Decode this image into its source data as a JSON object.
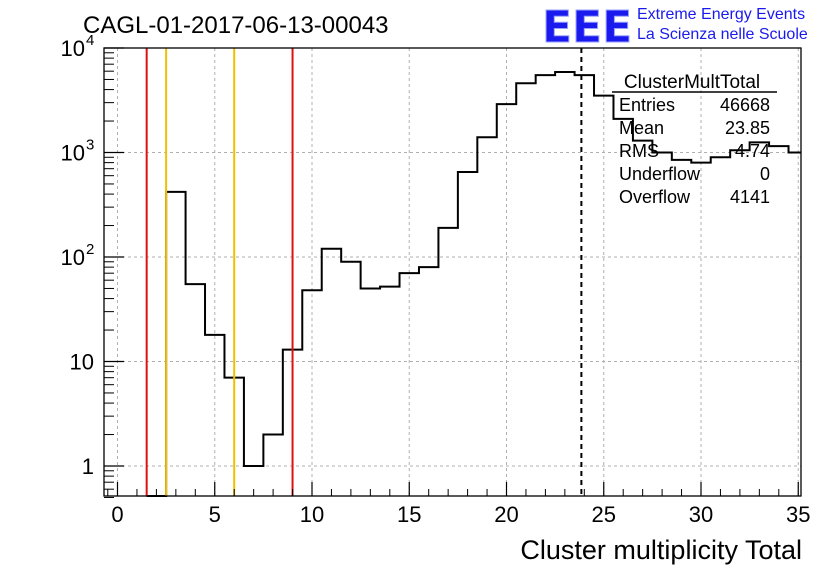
{
  "chart_data": {
    "type": "histogram",
    "title": "CAGL-01-2017-06-13-00043",
    "xlabel": "Cluster multiplicity Total",
    "ylabel": "",
    "xlim": [
      -0.5,
      35
    ],
    "ylim": [
      0.5,
      10000
    ],
    "y_scale": "log",
    "grid": true,
    "bin_width": 1,
    "bins": [
      {
        "x": 2,
        "y": 0
      },
      {
        "x": 3,
        "y": 420
      },
      {
        "x": 4,
        "y": 55
      },
      {
        "x": 5,
        "y": 18
      },
      {
        "x": 6,
        "y": 7
      },
      {
        "x": 7,
        "y": 1
      },
      {
        "x": 8,
        "y": 2
      },
      {
        "x": 9,
        "y": 13
      },
      {
        "x": 10,
        "y": 48
      },
      {
        "x": 11,
        "y": 120
      },
      {
        "x": 12,
        "y": 90
      },
      {
        "x": 13,
        "y": 50
      },
      {
        "x": 14,
        "y": 52
      },
      {
        "x": 15,
        "y": 70
      },
      {
        "x": 16,
        "y": 80
      },
      {
        "x": 17,
        "y": 190
      },
      {
        "x": 18,
        "y": 650
      },
      {
        "x": 19,
        "y": 1400
      },
      {
        "x": 20,
        "y": 2900
      },
      {
        "x": 21,
        "y": 4600
      },
      {
        "x": 22,
        "y": 5500
      },
      {
        "x": 23,
        "y": 5900
      },
      {
        "x": 24,
        "y": 5500
      },
      {
        "x": 25,
        "y": 3500
      },
      {
        "x": 26,
        "y": 2100
      },
      {
        "x": 27,
        "y": 1300
      },
      {
        "x": 28,
        "y": 1000
      },
      {
        "x": 29,
        "y": 850
      },
      {
        "x": 30,
        "y": 800
      },
      {
        "x": 31,
        "y": 900
      },
      {
        "x": 32,
        "y": 1050
      },
      {
        "x": 33,
        "y": 1250
      },
      {
        "x": 34,
        "y": 1150
      },
      {
        "x": 35,
        "y": 1000
      }
    ],
    "vertical_lines": [
      {
        "x": 1.5,
        "color": "#e01010",
        "style": "solid"
      },
      {
        "x": 2.5,
        "color": "#f0c000",
        "style": "solid"
      },
      {
        "x": 6,
        "color": "#f0c000",
        "style": "solid"
      },
      {
        "x": 9,
        "color": "#e01010",
        "style": "solid"
      },
      {
        "x": 23.85,
        "color": "#000000",
        "style": "dashed"
      }
    ],
    "x_ticks": [
      "0",
      "5",
      "10",
      "15",
      "20",
      "25",
      "30",
      "35"
    ],
    "y_ticks": [
      {
        "value": 1,
        "label": "1"
      },
      {
        "value": 10,
        "label": "10"
      },
      {
        "value": 100,
        "label": "10",
        "exp": "2"
      },
      {
        "value": 1000,
        "label": "10",
        "exp": "3"
      },
      {
        "value": 10000,
        "label": "10",
        "exp": "4"
      }
    ],
    "stats": {
      "title": "ClusterMultTotal",
      "rows": [
        {
          "name": "Entries",
          "value": "46668"
        },
        {
          "name": "Mean",
          "value": "23.85"
        },
        {
          "name": "RMS",
          "value": "4.74"
        },
        {
          "name": "Underflow",
          "value": "0"
        },
        {
          "name": "Overflow",
          "value": "4141"
        }
      ]
    }
  },
  "logo": {
    "mark": "EEE",
    "line1": "Extreme Energy Events",
    "line2": "La Scienza nelle Scuole",
    "color": "#1a1aee"
  },
  "colors": {
    "line": "#000000",
    "grid": "#b0b0b0"
  }
}
